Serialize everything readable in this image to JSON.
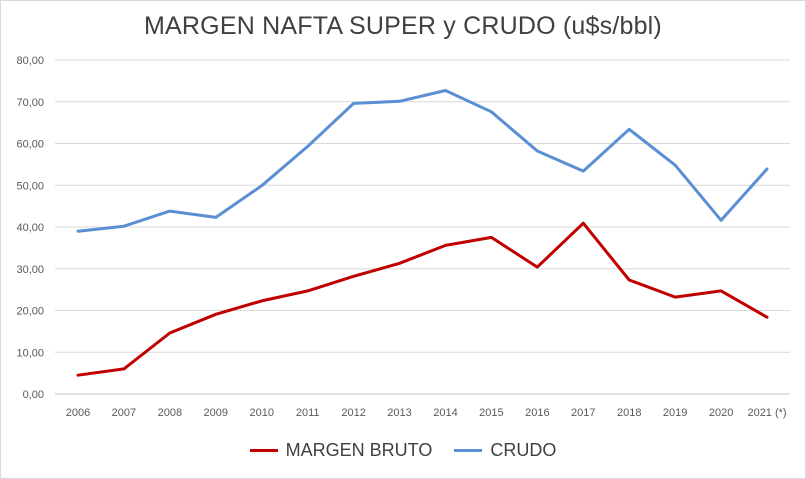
{
  "chart_data": {
    "type": "line",
    "title": "MARGEN NAFTA SUPER y CRUDO (u$s/bbl)",
    "categories": [
      "2006",
      "2007",
      "2008",
      "2009",
      "2010",
      "2011",
      "2012",
      "2013",
      "2014",
      "2015",
      "2016",
      "2017",
      "2018",
      "2019",
      "2020",
      "2021 (*)"
    ],
    "y_ticks": [
      "0,00",
      "10,00",
      "20,00",
      "30,00",
      "40,00",
      "50,00",
      "60,00",
      "70,00",
      "80,00"
    ],
    "ylim": [
      0,
      80
    ],
    "grid": true,
    "legend_position": "bottom",
    "series": [
      {
        "name": "MARGEN BRUTO",
        "color": "#c00000",
        "values": [
          4.5,
          6.0,
          14.6,
          19.1,
          22.3,
          24.7,
          28.2,
          31.3,
          35.6,
          37.5,
          30.4,
          40.9,
          27.3,
          23.2,
          24.7,
          18.4
        ]
      },
      {
        "name": "CRUDO",
        "color": "#5b8fd4",
        "values": [
          39.0,
          40.2,
          43.8,
          42.3,
          49.9,
          59.3,
          69.6,
          70.1,
          72.7,
          67.6,
          58.2,
          53.4,
          63.4,
          54.8,
          41.6,
          53.9
        ]
      }
    ]
  }
}
